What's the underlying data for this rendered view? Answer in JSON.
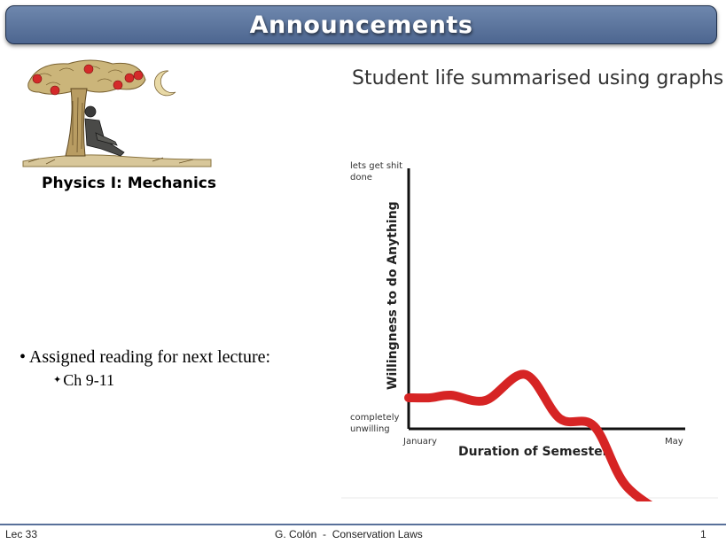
{
  "header": {
    "title": "Announcements"
  },
  "course_logo": {
    "icon": "newton-apple-tree-icon",
    "caption": "Physics I: Mechanics"
  },
  "bullets": {
    "main": "Assigned reading for next lecture:",
    "sub_prefix": "Ch ",
    "sub_value": "9-11"
  },
  "meme": {
    "title": "Student life summarised using graphs",
    "chart_data": {
      "type": "line",
      "title": "Student life summarised using graphs",
      "ylabel": "Willingness to do Anything",
      "xlabel": "Duration of Semester",
      "y_top_label": "lets get shit done",
      "y_bottom_label": "completely unwilling",
      "x_start_label": "January",
      "x_end_label": "May",
      "x": [
        0,
        0.08,
        0.16,
        0.29,
        0.44,
        0.57,
        0.7,
        0.82,
        1.0
      ],
      "values": [
        0.12,
        0.12,
        0.13,
        0.11,
        0.21,
        0.04,
        0.01,
        -0.22,
        -0.35
      ],
      "line_color": "#d62424"
    }
  },
  "footer": {
    "left": "Lec 33",
    "center": "G. Colón  -  Conservation Laws",
    "right": "1"
  }
}
